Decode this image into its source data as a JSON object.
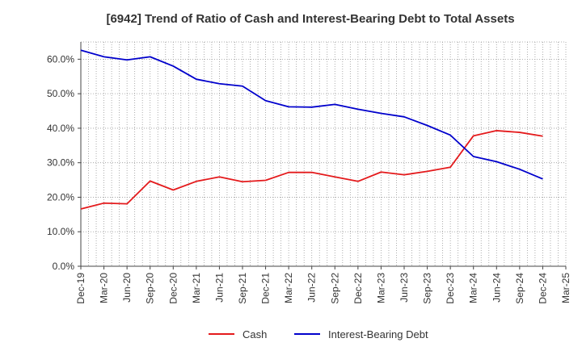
{
  "chart_data": {
    "type": "line",
    "title": "[6942]  Trend of Ratio of Cash and Interest-Bearing Debt to Total Assets",
    "xlabel": "",
    "ylabel": "",
    "x": [
      "Dec-19",
      "Mar-20",
      "Jun-20",
      "Sep-20",
      "Dec-20",
      "Mar-21",
      "Jun-21",
      "Sep-21",
      "Dec-21",
      "Mar-22",
      "Jun-22",
      "Sep-22",
      "Dec-22",
      "Mar-23",
      "Jun-23",
      "Sep-23",
      "Dec-23",
      "Mar-24",
      "Jun-24",
      "Sep-24",
      "Dec-24",
      "Mar-25"
    ],
    "ylim": [
      0,
      65
    ],
    "yticks": [
      0,
      10,
      20,
      30,
      40,
      50,
      60
    ],
    "ytick_labels": [
      "0.0%",
      "10.0%",
      "20.0%",
      "30.0%",
      "40.0%",
      "50.0%",
      "60.0%"
    ],
    "grid": true,
    "legend_position": "bottom",
    "series": [
      {
        "name": "Cash",
        "color": "#e41a1c",
        "values": [
          16.6,
          18.3,
          18.1,
          24.7,
          22.1,
          24.6,
          25.9,
          24.5,
          24.9,
          27.2,
          27.2,
          25.9,
          24.6,
          27.3,
          26.5,
          27.5,
          28.7,
          37.8,
          39.3,
          38.8,
          37.7,
          null
        ]
      },
      {
        "name": "Interest-Bearing Debt",
        "color": "#0000cc",
        "values": [
          62.6,
          60.7,
          59.8,
          60.7,
          58.0,
          54.2,
          52.9,
          52.2,
          48.0,
          46.2,
          46.1,
          46.9,
          45.5,
          44.3,
          43.3,
          40.8,
          38.0,
          31.8,
          30.3,
          28.1,
          25.3,
          null
        ]
      }
    ]
  }
}
